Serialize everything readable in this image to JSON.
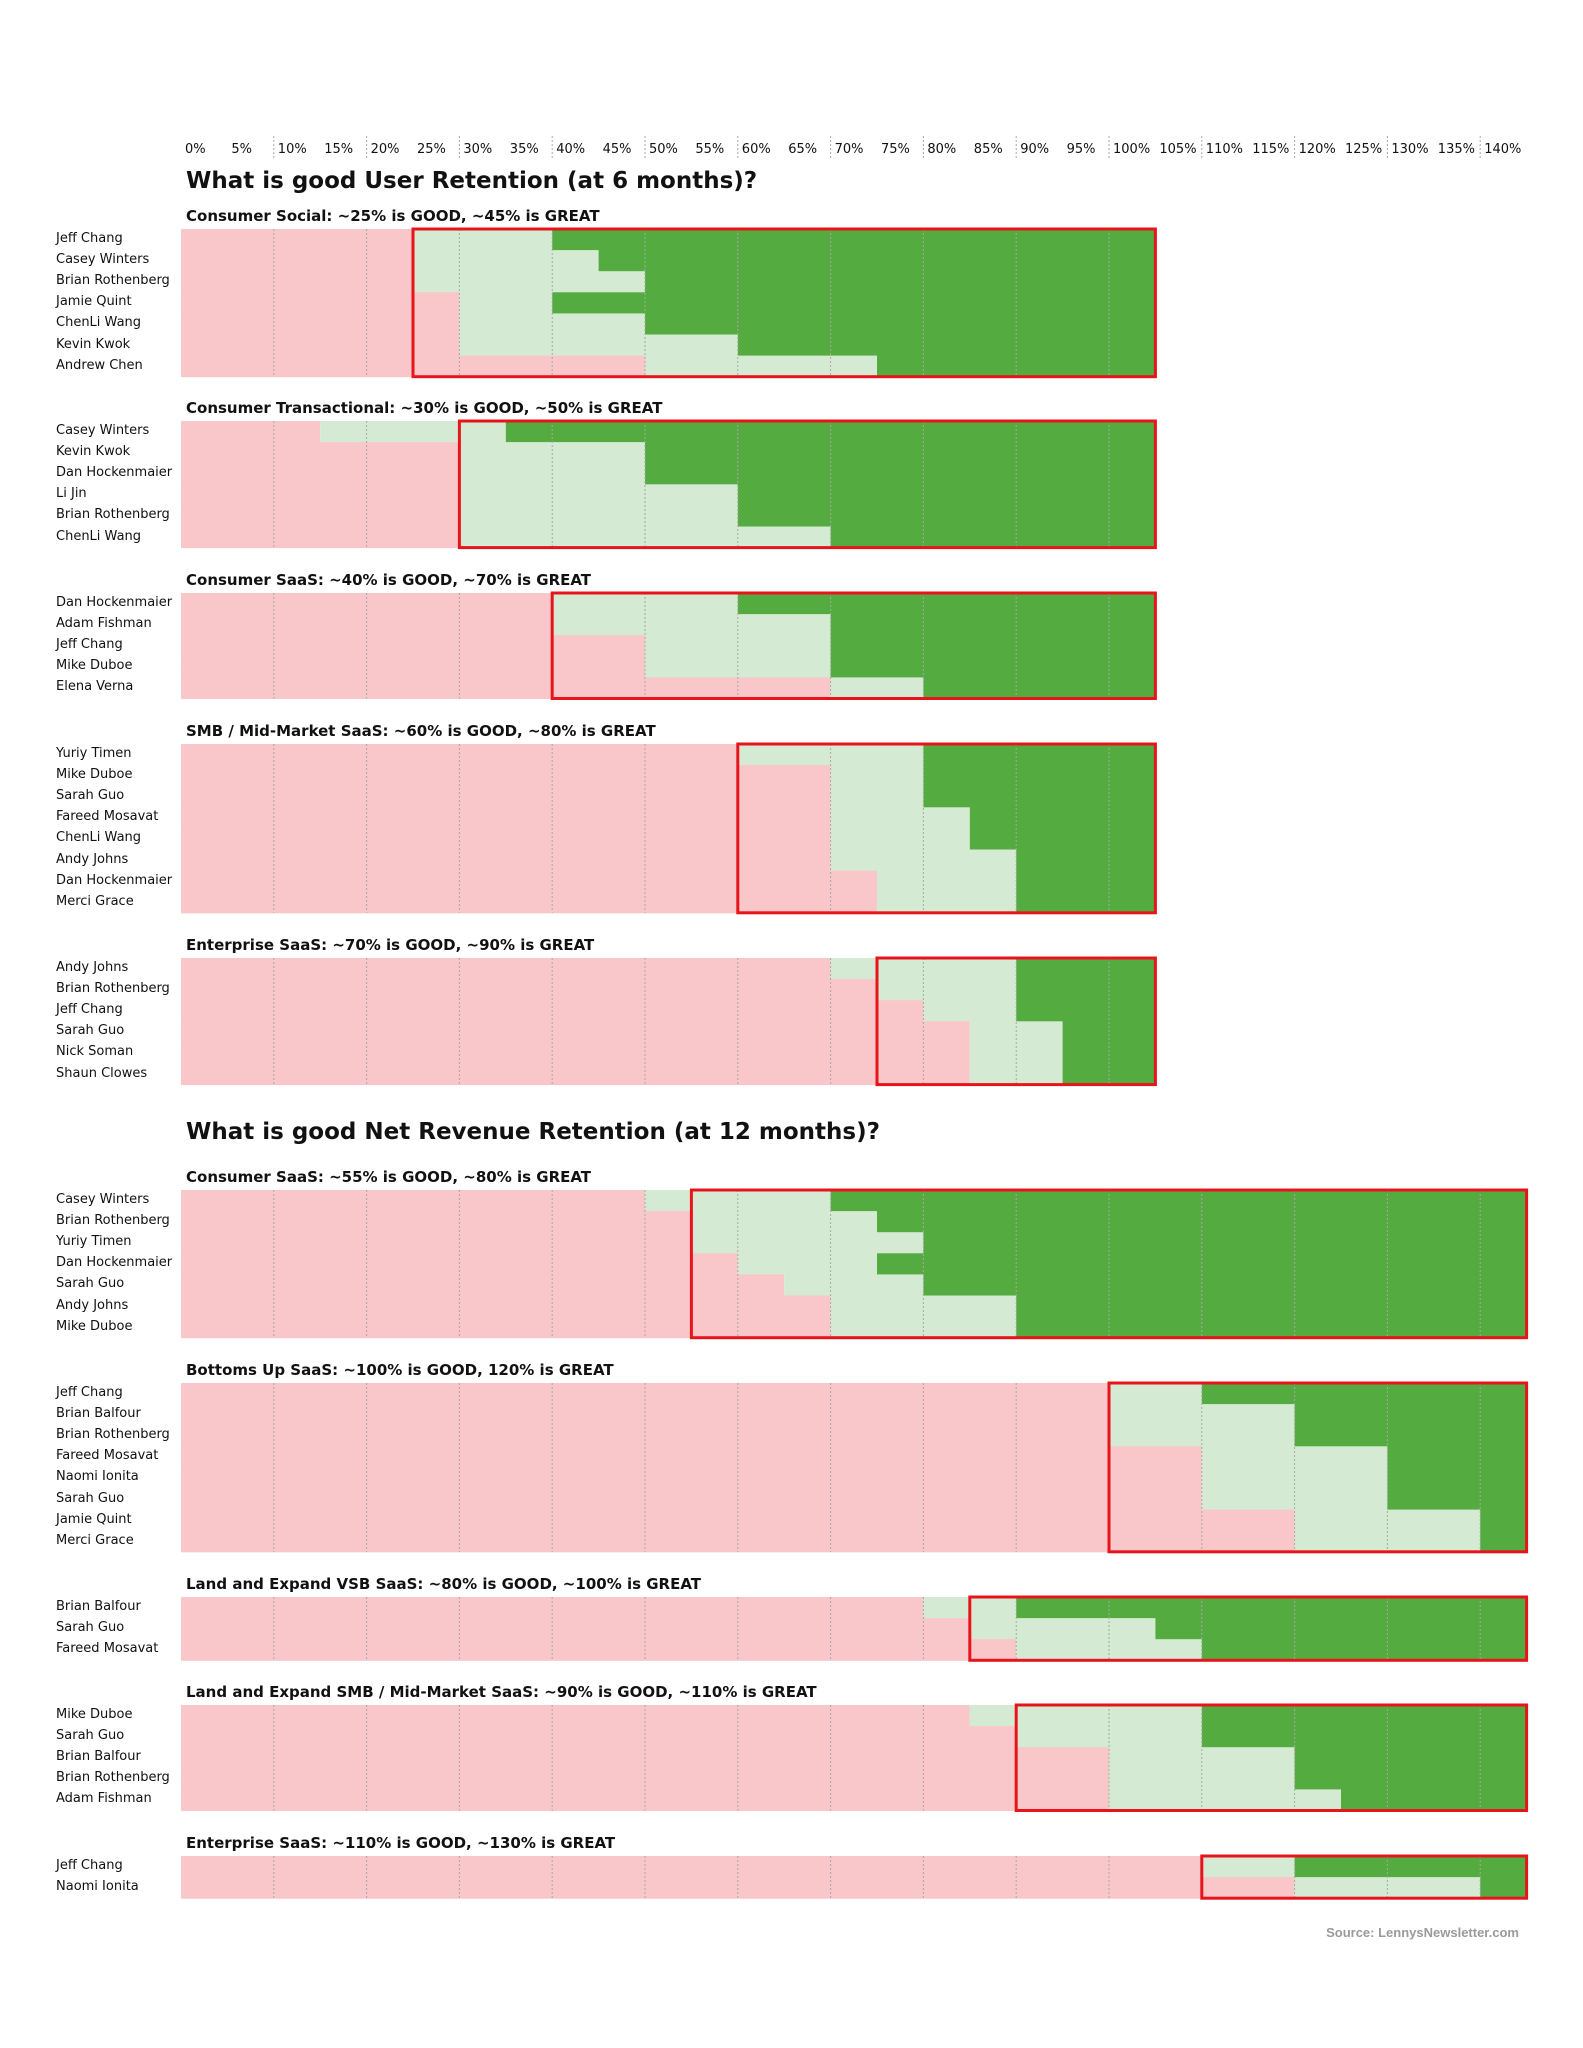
{
  "colors": {
    "below": "#f9c6c9",
    "good": "#d5ead2",
    "great": "#54ab3f",
    "box": "#e8141c",
    "grid": "#a8a8a8"
  },
  "source": "Source: LennysNewsletter.com",
  "chart_data": {
    "type": "heatmap",
    "x_unit": "percent",
    "xlim": [
      0,
      145
    ],
    "ticks": [
      "0%",
      "5%",
      "10%",
      "15%",
      "20%",
      "25%",
      "30%",
      "35%",
      "40%",
      "45%",
      "50%",
      "55%",
      "60%",
      "65%",
      "70%",
      "75%",
      "80%",
      "85%",
      "90%",
      "95%",
      "100%",
      "105%",
      "110%",
      "115%",
      "120%",
      "125%",
      "130%",
      "135%",
      "140%"
    ],
    "legend_semantics": {
      "below": "below GOOD",
      "good": "between GOOD and GREAT",
      "great": "GREAT and above"
    },
    "sections": [
      {
        "title": "What is good User Retention (at 6 months)?",
        "range_end": 105,
        "groups": [
          {
            "title": "Consumer Social: ~25% is GOOD, ~45% is GREAT",
            "box_start": 25,
            "rows": [
              {
                "name": "Jeff Chang",
                "good": 25,
                "great": 40
              },
              {
                "name": "Casey Winters",
                "good": 25,
                "great": 45
              },
              {
                "name": "Brian Rothenberg",
                "good": 25,
                "great": 50
              },
              {
                "name": "Jamie Quint",
                "good": 30,
                "great": 40
              },
              {
                "name": "ChenLi Wang",
                "good": 30,
                "great": 50
              },
              {
                "name": "Kevin Kwok",
                "good": 30,
                "great": 60
              },
              {
                "name": "Andrew Chen",
                "good": 50,
                "great": 75
              }
            ]
          },
          {
            "title": "Consumer Transactional: ~30% is GOOD, ~50% is GREAT",
            "box_start": 30,
            "rows": [
              {
                "name": "Casey Winters",
                "good": 15,
                "great": 35
              },
              {
                "name": "Kevin Kwok",
                "good": 30,
                "great": 50
              },
              {
                "name": "Dan Hockenmaier",
                "good": 30,
                "great": 50
              },
              {
                "name": "Li Jin",
                "good": 30,
                "great": 60
              },
              {
                "name": "Brian Rothenberg",
                "good": 30,
                "great": 60
              },
              {
                "name": "ChenLi Wang",
                "good": 30,
                "great": 70
              }
            ]
          },
          {
            "title": "Consumer SaaS: ~40% is GOOD, ~70% is GREAT",
            "box_start": 40,
            "rows": [
              {
                "name": "Dan Hockenmaier",
                "good": 40,
                "great": 60
              },
              {
                "name": "Adam Fishman",
                "good": 40,
                "great": 70
              },
              {
                "name": "Jeff Chang",
                "good": 50,
                "great": 70
              },
              {
                "name": "Mike Duboe",
                "good": 50,
                "great": 70
              },
              {
                "name": "Elena Verna",
                "good": 70,
                "great": 80
              }
            ]
          },
          {
            "title": "SMB / Mid-Market SaaS: ~60% is GOOD, ~80% is GREAT",
            "box_start": 60,
            "rows": [
              {
                "name": "Yuriy Timen",
                "good": 60,
                "great": 80
              },
              {
                "name": "Mike Duboe",
                "good": 70,
                "great": 80
              },
              {
                "name": "Sarah Guo",
                "good": 70,
                "great": 80
              },
              {
                "name": "Fareed Mosavat",
                "good": 70,
                "great": 85
              },
              {
                "name": "ChenLi Wang",
                "good": 70,
                "great": 85
              },
              {
                "name": "Andy Johns",
                "good": 70,
                "great": 90
              },
              {
                "name": "Dan Hockenmaier",
                "good": 75,
                "great": 90
              },
              {
                "name": "Merci Grace",
                "good": 75,
                "great": 90
              }
            ]
          },
          {
            "title": "Enterprise SaaS: ~70% is GOOD, ~90% is GREAT",
            "box_start": 75,
            "rows": [
              {
                "name": "Andy Johns",
                "good": 70,
                "great": 90
              },
              {
                "name": "Brian Rothenberg",
                "good": 75,
                "great": 90
              },
              {
                "name": "Jeff Chang",
                "good": 80,
                "great": 90
              },
              {
                "name": "Sarah Guo",
                "good": 85,
                "great": 95
              },
              {
                "name": "Nick Soman",
                "good": 85,
                "great": 95
              },
              {
                "name": "Shaun Clowes",
                "good": 85,
                "great": 95
              }
            ]
          }
        ]
      },
      {
        "title": "What is good Net Revenue Retention (at 12 months)?",
        "range_end": 145,
        "groups": [
          {
            "title": "Consumer SaaS: ~55% is GOOD, ~80% is GREAT",
            "box_start": 55,
            "rows": [
              {
                "name": "Casey Winters",
                "good": 50,
                "great": 70
              },
              {
                "name": "Brian Rothenberg",
                "good": 55,
                "great": 75
              },
              {
                "name": "Yuriy Timen",
                "good": 55,
                "great": 80
              },
              {
                "name": "Dan Hockenmaier",
                "good": 60,
                "great": 75
              },
              {
                "name": "Sarah Guo",
                "good": 65,
                "great": 80
              },
              {
                "name": "Andy Johns",
                "good": 70,
                "great": 90
              },
              {
                "name": "Mike Duboe",
                "good": 70,
                "great": 90
              }
            ]
          },
          {
            "title": "Bottoms Up SaaS: ~100% is GOOD, 120% is GREAT",
            "box_start": 100,
            "rows": [
              {
                "name": "Jeff Chang",
                "good": 100,
                "great": 110
              },
              {
                "name": "Brian Balfour",
                "good": 100,
                "great": 120
              },
              {
                "name": "Brian Rothenberg",
                "good": 100,
                "great": 120
              },
              {
                "name": "Fareed Mosavat",
                "good": 110,
                "great": 130
              },
              {
                "name": "Naomi Ionita",
                "good": 110,
                "great": 130
              },
              {
                "name": "Sarah Guo",
                "good": 110,
                "great": 130
              },
              {
                "name": "Jamie Quint",
                "good": 120,
                "great": 140
              },
              {
                "name": "Merci Grace",
                "good": 120,
                "great": 140
              }
            ]
          },
          {
            "title": "Land and Expand VSB SaaS: ~80% is GOOD, ~100% is GREAT",
            "box_start": 85,
            "rows": [
              {
                "name": "Brian Balfour",
                "good": 80,
                "great": 90
              },
              {
                "name": "Sarah Guo",
                "good": 85,
                "great": 105
              },
              {
                "name": "Fareed Mosavat",
                "good": 90,
                "great": 110
              }
            ]
          },
          {
            "title": "Land and Expand SMB / Mid-Market SaaS: ~90% is GOOD, ~110% is GREAT",
            "box_start": 90,
            "rows": [
              {
                "name": "Mike Duboe",
                "good": 85,
                "great": 110
              },
              {
                "name": "Sarah Guo",
                "good": 90,
                "great": 110
              },
              {
                "name": "Brian Balfour",
                "good": 100,
                "great": 120
              },
              {
                "name": "Brian Rothenberg",
                "good": 100,
                "great": 120
              },
              {
                "name": "Adam Fishman",
                "good": 100,
                "great": 125
              }
            ]
          },
          {
            "title": "Enterprise SaaS: ~110% is GOOD, ~130% is GREAT",
            "box_start": 110,
            "rows": [
              {
                "name": "Jeff Chang",
                "good": 110,
                "great": 120
              },
              {
                "name": "Naomi Ionita",
                "good": 120,
                "great": 140
              }
            ]
          }
        ]
      }
    ]
  }
}
